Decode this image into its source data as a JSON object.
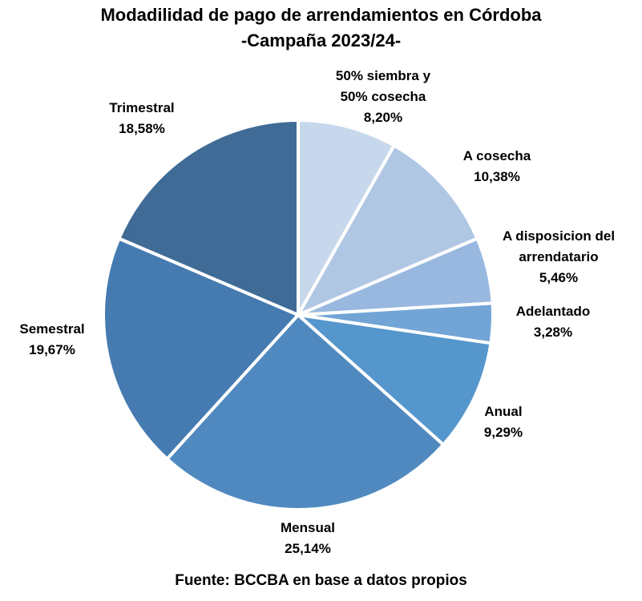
{
  "chart_data": {
    "type": "pie",
    "title_line1": "Modadilidad de pago de arrendamientos en Córdoba",
    "title_line2": "-Campaña 2023/24-",
    "source": "Fuente: BCCBA en base a datos propios",
    "slices": [
      {
        "label_lines": [
          "50% siembra y",
          "50% cosecha"
        ],
        "value": 8.2,
        "value_label": "8,20%",
        "color": "#c8d8ec"
      },
      {
        "label_lines": [
          "A cosecha"
        ],
        "value": 10.38,
        "value_label": "10,38%",
        "color": "#b0c7e4"
      },
      {
        "label_lines": [
          "A disposicion del",
          "arrendatario"
        ],
        "value": 5.46,
        "value_label": "5,46%",
        "color": "#98b8df"
      },
      {
        "label_lines": [
          "Adelantado"
        ],
        "value": 3.28,
        "value_label": "3,28%",
        "color": "#72a4d6"
      },
      {
        "label_lines": [
          "Anual"
        ],
        "value": 9.29,
        "value_label": "9,29%",
        "color": "#5596cc"
      },
      {
        "label_lines": [
          "Mensual"
        ],
        "value": 25.14,
        "value_label": "25,14%",
        "color": "#4f89bf"
      },
      {
        "label_lines": [
          "Semestral"
        ],
        "value": 19.67,
        "value_label": "19,67%",
        "color": "#457bb0"
      },
      {
        "label_lines": [
          "Trimestral"
        ],
        "value": 18.58,
        "value_label": "18,58%",
        "color": "#3f6b96"
      }
    ]
  }
}
